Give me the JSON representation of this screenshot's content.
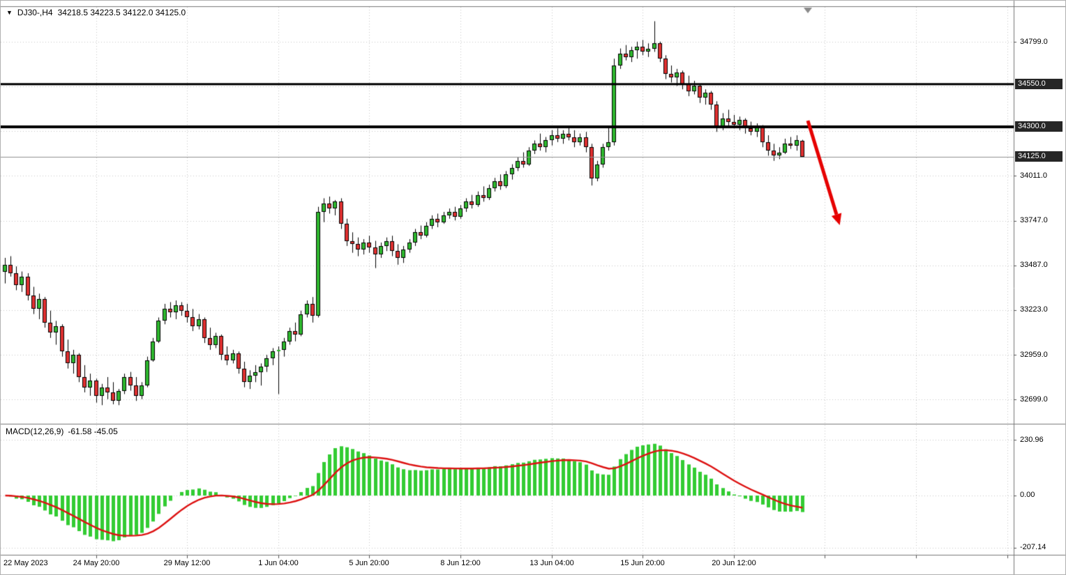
{
  "title_bar": {
    "collapse_icon": "▼",
    "symbol_period": "DJ30-,H4",
    "ohlc_text": "34218.5 34223.5 34122.0 34125.0"
  },
  "colors": {
    "background": "#FFFFFF",
    "bull": "#2EB82E",
    "bear": "#E03030",
    "candle_outline": "#000000",
    "grid": "#C6C6C6",
    "level_line": "#000000",
    "bid_line": "#909090",
    "macd_histogram": "#33CC33",
    "macd_signal": "#DD1111",
    "arrow": "#E60000",
    "label_box_bg": "#262626",
    "label_box_text": "#FFFFFF",
    "separator": "#777777",
    "axis_text": "#000000"
  },
  "chart_data": {
    "type": "candlestick",
    "symbol": "DJ30-",
    "timeframe": "H4",
    "current_bar": {
      "open": 34218.5,
      "high": 34223.5,
      "low": 34122.0,
      "close": 34125.0
    },
    "price_axis": {
      "labels": [
        "34799.0",
        "34011.0",
        "33747.0",
        "33487.0",
        "33223.0",
        "32959.0",
        "32699.0"
      ],
      "grid_levels": [
        34799,
        34536,
        34273,
        34011,
        33747,
        33487,
        33223,
        32959,
        32699
      ],
      "range_top": 34799.0,
      "range_bottom": 32699.0
    },
    "levels": [
      {
        "price": 34550.0,
        "label": "34550.0",
        "style": "solid-black-thick"
      },
      {
        "price": 34300.0,
        "label": "34300.0",
        "style": "solid-black-thick"
      }
    ],
    "bid": {
      "price": 34125.0,
      "label": "34125.0"
    },
    "time_labels": [
      {
        "index": 0,
        "label": "22 May 2023"
      },
      {
        "index": 16,
        "label": "24 May 20:00"
      },
      {
        "index": 32,
        "label": "29 May 12:00"
      },
      {
        "index": 48,
        "label": "1 Jun 04:00"
      },
      {
        "index": 64,
        "label": "5 Jun 20:00"
      },
      {
        "index": 80,
        "label": "8 Jun 12:00"
      },
      {
        "index": 96,
        "label": "13 Jun 04:00"
      },
      {
        "index": 112,
        "label": "15 Jun 20:00"
      },
      {
        "index": 128,
        "label": "20 Jun 12:00"
      }
    ],
    "grid_bar_indices": [
      16,
      32,
      48,
      64,
      80,
      96,
      112,
      128,
      144,
      160,
      176
    ],
    "arrow_annotation": {
      "from_bar": 141,
      "from_price": 34336,
      "to_bar": 146.6,
      "to_price": 33722
    },
    "macd": {
      "name": "MACD(12,26,9)",
      "current_values": "-61.58 -45.05",
      "fast": 12,
      "slow": 26,
      "signal_period": 9,
      "scale_labels": [
        "230.96",
        "0.00",
        "-207.14"
      ]
    },
    "candles": [
      [
        33450,
        33530,
        33380,
        33490
      ],
      [
        33490,
        33540,
        33420,
        33440
      ],
      [
        33440,
        33480,
        33340,
        33370
      ],
      [
        33370,
        33450,
        33330,
        33420
      ],
      [
        33420,
        33440,
        33280,
        33310
      ],
      [
        33310,
        33360,
        33200,
        33230
      ],
      [
        33230,
        33320,
        33170,
        33290
      ],
      [
        33290,
        33300,
        33120,
        33150
      ],
      [
        33150,
        33220,
        33060,
        33090
      ],
      [
        33090,
        33160,
        33020,
        33130
      ],
      [
        33130,
        33140,
        32950,
        32980
      ],
      [
        32980,
        33050,
        32880,
        32910
      ],
      [
        32910,
        32990,
        32850,
        32960
      ],
      [
        32960,
        32970,
        32800,
        32830
      ],
      [
        32830,
        32900,
        32740,
        32770
      ],
      [
        32770,
        32850,
        32720,
        32810
      ],
      [
        32810,
        32820,
        32680,
        32720
      ],
      [
        32720,
        32790,
        32665,
        32770
      ],
      [
        32770,
        32830,
        32700,
        32740
      ],
      [
        32740,
        32800,
        32670,
        32690
      ],
      [
        32690,
        32760,
        32665,
        32750
      ],
      [
        32750,
        32850,
        32730,
        32830
      ],
      [
        32830,
        32860,
        32750,
        32780
      ],
      [
        32780,
        32830,
        32690,
        32720
      ],
      [
        32720,
        32800,
        32700,
        32780
      ],
      [
        32780,
        32950,
        32770,
        32930
      ],
      [
        32930,
        33060,
        32920,
        33040
      ],
      [
        33040,
        33180,
        33030,
        33160
      ],
      [
        33160,
        33260,
        33140,
        33230
      ],
      [
        33230,
        33270,
        33180,
        33210
      ],
      [
        33210,
        33280,
        33170,
        33250
      ],
      [
        33250,
        33270,
        33190,
        33220
      ],
      [
        33220,
        33260,
        33150,
        33180
      ],
      [
        33180,
        33230,
        33100,
        33130
      ],
      [
        33130,
        33200,
        33110,
        33170
      ],
      [
        33170,
        33180,
        33030,
        33060
      ],
      [
        33060,
        33120,
        32990,
        33020
      ],
      [
        33020,
        33090,
        33000,
        33070
      ],
      [
        33070,
        33080,
        32930,
        32960
      ],
      [
        32960,
        33010,
        32900,
        32930
      ],
      [
        32930,
        32990,
        32910,
        32970
      ],
      [
        32970,
        32980,
        32850,
        32880
      ],
      [
        32880,
        32920,
        32770,
        32800
      ],
      [
        32800,
        32870,
        32760,
        32840
      ],
      [
        32840,
        32900,
        32800,
        32860
      ],
      [
        32860,
        32910,
        32780,
        32890
      ],
      [
        32890,
        32960,
        32860,
        32940
      ],
      [
        32940,
        33000,
        32900,
        32980
      ],
      [
        32980,
        33010,
        32730,
        32990
      ],
      [
        32990,
        33060,
        32950,
        33040
      ],
      [
        33040,
        33120,
        33020,
        33100
      ],
      [
        33100,
        33150,
        33040,
        33080
      ],
      [
        33080,
        33220,
        33070,
        33200
      ],
      [
        33200,
        33280,
        33180,
        33260
      ],
      [
        33260,
        33300,
        33150,
        33190
      ],
      [
        33190,
        33830,
        33180,
        33800
      ],
      [
        33800,
        33880,
        33740,
        33850
      ],
      [
        33850,
        33890,
        33790,
        33820
      ],
      [
        33820,
        33870,
        33780,
        33860
      ],
      [
        33860,
        33880,
        33700,
        33730
      ],
      [
        33730,
        33760,
        33600,
        33630
      ],
      [
        33630,
        33680,
        33560,
        33610
      ],
      [
        33610,
        33650,
        33540,
        33580
      ],
      [
        33580,
        33640,
        33550,
        33620
      ],
      [
        33620,
        33660,
        33560,
        33590
      ],
      [
        33590,
        33630,
        33470,
        33550
      ],
      [
        33550,
        33620,
        33530,
        33600
      ],
      [
        33600,
        33650,
        33570,
        33630
      ],
      [
        33630,
        33660,
        33540,
        33570
      ],
      [
        33570,
        33610,
        33490,
        33530
      ],
      [
        33530,
        33600,
        33500,
        33580
      ],
      [
        33580,
        33640,
        33560,
        33620
      ],
      [
        33620,
        33700,
        33600,
        33680
      ],
      [
        33680,
        33720,
        33640,
        33660
      ],
      [
        33660,
        33740,
        33650,
        33720
      ],
      [
        33720,
        33780,
        33700,
        33760
      ],
      [
        33760,
        33790,
        33710,
        33740
      ],
      [
        33740,
        33800,
        33730,
        33780
      ],
      [
        33780,
        33820,
        33760,
        33800
      ],
      [
        33800,
        33830,
        33750,
        33770
      ],
      [
        33770,
        33840,
        33760,
        33820
      ],
      [
        33820,
        33880,
        33800,
        33860
      ],
      [
        33860,
        33900,
        33820,
        33840
      ],
      [
        33840,
        33920,
        33830,
        33900
      ],
      [
        33900,
        33950,
        33860,
        33880
      ],
      [
        33880,
        33960,
        33870,
        33940
      ],
      [
        33940,
        34000,
        33920,
        33980
      ],
      [
        33980,
        34020,
        33930,
        33950
      ],
      [
        33950,
        34040,
        33940,
        34020
      ],
      [
        34020,
        34080,
        33990,
        34060
      ],
      [
        34060,
        34120,
        34040,
        34100
      ],
      [
        34100,
        34150,
        34060,
        34080
      ],
      [
        34080,
        34180,
        34070,
        34160
      ],
      [
        34160,
        34220,
        34140,
        34200
      ],
      [
        34200,
        34260,
        34160,
        34180
      ],
      [
        34180,
        34240,
        34150,
        34220
      ],
      [
        34220,
        34280,
        34190,
        34250
      ],
      [
        34250,
        34290,
        34210,
        34230
      ],
      [
        34230,
        34280,
        34200,
        34260
      ],
      [
        34260,
        34300,
        34220,
        34240
      ],
      [
        34240,
        34280,
        34180,
        34210
      ],
      [
        34210,
        34260,
        34190,
        34240
      ],
      [
        34240,
        34270,
        34150,
        34180
      ],
      [
        34180,
        34200,
        33955,
        33995
      ],
      [
        33995,
        34100,
        33980,
        34080
      ],
      [
        34080,
        34200,
        34060,
        34180
      ],
      [
        34180,
        34300,
        34160,
        34210
      ],
      [
        34210,
        34700,
        34190,
        34660
      ],
      [
        34660,
        34760,
        34640,
        34730
      ],
      [
        34730,
        34780,
        34690,
        34710
      ],
      [
        34710,
        34770,
        34680,
        34750
      ],
      [
        34750,
        34800,
        34700,
        34770
      ],
      [
        34770,
        34810,
        34720,
        34740
      ],
      [
        34740,
        34790,
        34710,
        34760
      ],
      [
        34760,
        34920,
        34740,
        34790
      ],
      [
        34790,
        34800,
        34680,
        34700
      ],
      [
        34700,
        34720,
        34580,
        34610
      ],
      [
        34610,
        34660,
        34560,
        34590
      ],
      [
        34590,
        34640,
        34540,
        34620
      ],
      [
        34620,
        34630,
        34520,
        34550
      ],
      [
        34550,
        34600,
        34480,
        34510
      ],
      [
        34510,
        34570,
        34490,
        34540
      ],
      [
        34540,
        34550,
        34440,
        34470
      ],
      [
        34470,
        34520,
        34430,
        34500
      ],
      [
        34500,
        34510,
        34400,
        34430
      ],
      [
        34430,
        34450,
        34270,
        34300
      ],
      [
        34300,
        34380,
        34280,
        34350
      ],
      [
        34350,
        34400,
        34300,
        34330
      ],
      [
        34330,
        34370,
        34290,
        34310
      ],
      [
        34310,
        34360,
        34280,
        34340
      ],
      [
        34340,
        34350,
        34260,
        34290
      ],
      [
        34290,
        34330,
        34250,
        34270
      ],
      [
        34270,
        34320,
        34240,
        34300
      ],
      [
        34300,
        34310,
        34180,
        34210
      ],
      [
        34210,
        34250,
        34130,
        34160
      ],
      [
        34160,
        34200,
        34100,
        34130
      ],
      [
        34130,
        34180,
        34110,
        34150
      ],
      [
        34150,
        34230,
        34140,
        34200
      ],
      [
        34200,
        34240,
        34170,
        34190
      ],
      [
        34190,
        34250,
        34160,
        34220
      ],
      [
        34218.5,
        34223.5,
        34122.0,
        34125.0
      ]
    ]
  }
}
